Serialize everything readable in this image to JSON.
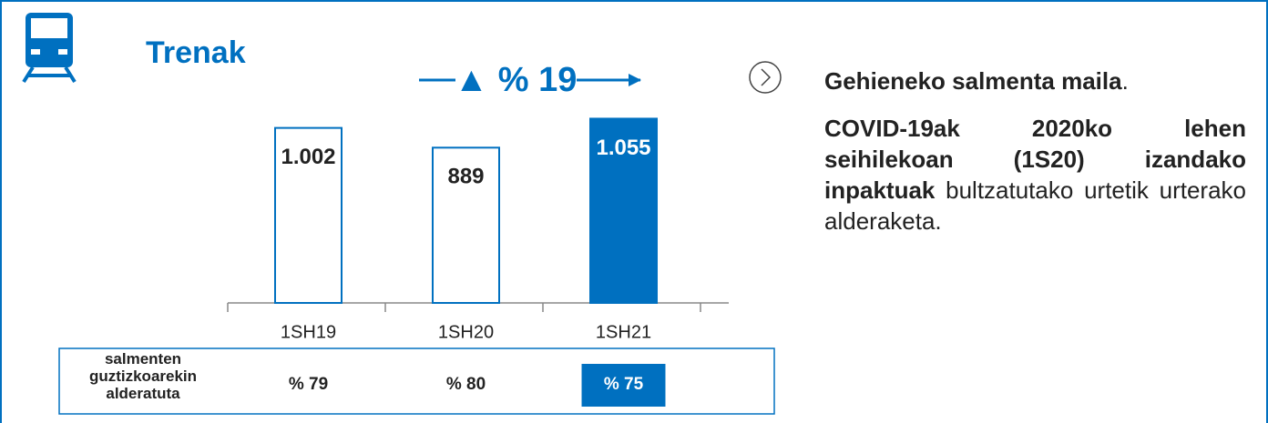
{
  "chart_data": {
    "type": "bar",
    "title": "Trenak",
    "annotation": "▲ % 19",
    "categories": [
      "1SH19",
      "1SH20",
      "1SH21"
    ],
    "values": [
      1002,
      889,
      1055
    ],
    "value_labels": [
      "1.002",
      "889",
      "1.055"
    ],
    "colors": [
      "#ffffff",
      "#ffffff",
      "#0070c0"
    ],
    "edge_color": "#0070c0"
  },
  "share_row": {
    "label": "salmenten guztizkoarekin alderatuta",
    "cells": [
      "% 79",
      "% 80",
      "% 75"
    ]
  },
  "notes": [
    [
      {
        "text": "Gehieneko salmenta maila",
        "bold": true
      },
      {
        "text": ".",
        "bold": false
      }
    ],
    [
      {
        "text": "COVID-19ak 2020ko lehen seihilekoan (1S20) izandako inpaktuak",
        "bold": true
      },
      {
        "text": " bultzatutako urtetik urterako alderaketa.",
        "bold": false
      }
    ]
  ]
}
